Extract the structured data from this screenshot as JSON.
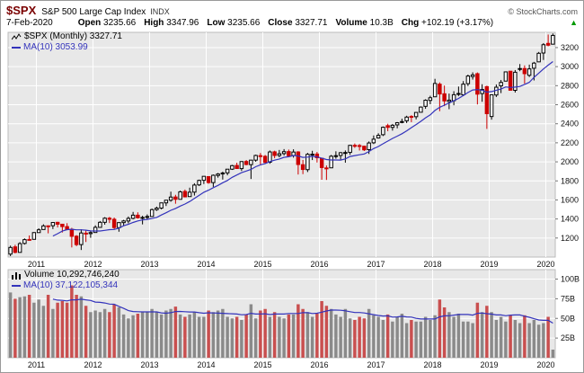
{
  "header": {
    "symbol": "$SPX",
    "name": "S&P 500 Large Cap Index",
    "exchange": "INDX",
    "copyright": "© StockCharts.com",
    "date": "7-Feb-2020",
    "quote": {
      "open_label": "Open",
      "open": "3235.66",
      "high_label": "High",
      "high": "3347.96",
      "low_label": "Low",
      "low": "3235.66",
      "close_label": "Close",
      "close": "3327.71",
      "volume_label": "Volume",
      "volume": "10.3B",
      "chg_label": "Chg",
      "chg": "+102.19 (+3.17%)",
      "direction_arrow": "▲"
    }
  },
  "chart_data": {
    "type": "candlestick",
    "period": "Monthly",
    "legend": {
      "price": "$SPX (Monthly) 3327.71",
      "price_ma": "MA(10) 3053.99",
      "volume": "Volume 10,292,746,240",
      "volume_ma": "MA(10) 37,122,105,344"
    },
    "price_ticks": [
      1200,
      1400,
      1600,
      1800,
      2000,
      2200,
      2400,
      2600,
      2800,
      3000,
      3200
    ],
    "price_range": [
      1000,
      3360
    ],
    "volume_ticks": [
      {
        "v": 25,
        "label": "25B"
      },
      {
        "v": 50,
        "label": "50B"
      },
      {
        "v": 75,
        "label": "75B"
      },
      {
        "v": 100,
        "label": "100B"
      }
    ],
    "volume_range": [
      0,
      112
    ],
    "x_labels": [
      "2011",
      "2012",
      "2013",
      "2014",
      "2015",
      "2016",
      "2017",
      "2018",
      "2019",
      "2020"
    ],
    "colors": {
      "plot_bg": "#e8e8e8",
      "grid": "#ffffff",
      "up": "#000000",
      "up_fill": "#ffffff",
      "down": "#cc0000",
      "ma": "#3333bb",
      "vol_up": "#8a8a8a",
      "vol_down": "#c94f4f",
      "axis_text": "#111111",
      "arrow_green": "#009900",
      "symbol_red": "#7a0000"
    },
    "months": [
      [
        "2010-07",
        1031,
        1120,
        1010,
        1101,
        83
      ],
      [
        "2010-08",
        1107,
        1129,
        1039,
        1049,
        75
      ],
      [
        "2010-09",
        1049,
        1157,
        1049,
        1141,
        77
      ],
      [
        "2010-10",
        1143,
        1196,
        1131,
        1183,
        78
      ],
      [
        "2010-11",
        1185,
        1227,
        1173,
        1180,
        80
      ],
      [
        "2010-12",
        1186,
        1262,
        1186,
        1257,
        70
      ],
      [
        "2011-01",
        1257,
        1302,
        1257,
        1286,
        74
      ],
      [
        "2011-02",
        1289,
        1344,
        1289,
        1327,
        66
      ],
      [
        "2011-03",
        1328,
        1332,
        1249,
        1325,
        80
      ],
      [
        "2011-04",
        1329,
        1364,
        1294,
        1363,
        62
      ],
      [
        "2011-05",
        1365,
        1370,
        1311,
        1345,
        70
      ],
      [
        "2011-06",
        1345,
        1346,
        1258,
        1320,
        72
      ],
      [
        "2011-07",
        1320,
        1356,
        1282,
        1292,
        70
      ],
      [
        "2011-08",
        1292,
        1307,
        1101,
        1218,
        92
      ],
      [
        "2011-09",
        1219,
        1230,
        1114,
        1131,
        80
      ],
      [
        "2011-10",
        1131,
        1292,
        1074,
        1253,
        78
      ],
      [
        "2011-11",
        1251,
        1277,
        1158,
        1246,
        66
      ],
      [
        "2011-12",
        1246,
        1269,
        1202,
        1257,
        58
      ],
      [
        "2012-01",
        1258,
        1333,
        1258,
        1312,
        60
      ],
      [
        "2012-02",
        1312,
        1378,
        1312,
        1365,
        58
      ],
      [
        "2012-03",
        1365,
        1419,
        1340,
        1408,
        62
      ],
      [
        "2012-04",
        1408,
        1422,
        1357,
        1397,
        58
      ],
      [
        "2012-05",
        1397,
        1415,
        1291,
        1310,
        68
      ],
      [
        "2012-06",
        1309,
        1363,
        1266,
        1362,
        64
      ],
      [
        "2012-07",
        1362,
        1391,
        1325,
        1379,
        55
      ],
      [
        "2012-08",
        1379,
        1426,
        1354,
        1406,
        50
      ],
      [
        "2012-09",
        1406,
        1474,
        1396,
        1440,
        54
      ],
      [
        "2012-10",
        1440,
        1470,
        1403,
        1412,
        56
      ],
      [
        "2012-11",
        1412,
        1434,
        1343,
        1416,
        58
      ],
      [
        "2012-12",
        1416,
        1448,
        1398,
        1426,
        58
      ],
      [
        "2013-01",
        1426,
        1509,
        1426,
        1498,
        62
      ],
      [
        "2013-02",
        1498,
        1530,
        1485,
        1514,
        58
      ],
      [
        "2013-03",
        1514,
        1570,
        1501,
        1569,
        55
      ],
      [
        "2013-04",
        1569,
        1597,
        1536,
        1597,
        60
      ],
      [
        "2013-05",
        1597,
        1687,
        1581,
        1630,
        62
      ],
      [
        "2013-06",
        1631,
        1654,
        1560,
        1606,
        65
      ],
      [
        "2013-07",
        1606,
        1698,
        1604,
        1685,
        55
      ],
      [
        "2013-08",
        1689,
        1709,
        1627,
        1632,
        52
      ],
      [
        "2013-09",
        1635,
        1729,
        1633,
        1681,
        55
      ],
      [
        "2013-10",
        1682,
        1775,
        1646,
        1756,
        58
      ],
      [
        "2013-11",
        1758,
        1813,
        1746,
        1805,
        52
      ],
      [
        "2013-12",
        1806,
        1849,
        1767,
        1848,
        52
      ],
      [
        "2014-01",
        1845,
        1850,
        1770,
        1782,
        60
      ],
      [
        "2014-02",
        1782,
        1867,
        1737,
        1859,
        58
      ],
      [
        "2014-03",
        1857,
        1883,
        1834,
        1872,
        60
      ],
      [
        "2014-04",
        1873,
        1897,
        1814,
        1883,
        62
      ],
      [
        "2014-05",
        1884,
        1924,
        1859,
        1923,
        52
      ],
      [
        "2014-06",
        1923,
        1968,
        1915,
        1960,
        50
      ],
      [
        "2014-07",
        1962,
        1991,
        1930,
        1930,
        52
      ],
      [
        "2014-08",
        1929,
        2005,
        1904,
        2003,
        48
      ],
      [
        "2014-09",
        2004,
        2019,
        1964,
        1972,
        55
      ],
      [
        "2014-10",
        1971,
        2018,
        1820,
        2018,
        68
      ],
      [
        "2014-11",
        2018,
        2075,
        2001,
        2067,
        50
      ],
      [
        "2014-12",
        2065,
        2093,
        1972,
        2058,
        60
      ],
      [
        "2015-01",
        2058,
        2072,
        1988,
        1994,
        62
      ],
      [
        "2015-02",
        1996,
        2119,
        1980,
        2104,
        52
      ],
      [
        "2015-03",
        2105,
        2117,
        2039,
        2067,
        58
      ],
      [
        "2015-04",
        2067,
        2125,
        2048,
        2085,
        52
      ],
      [
        "2015-05",
        2087,
        2134,
        2067,
        2107,
        50
      ],
      [
        "2015-06",
        2108,
        2129,
        2056,
        2063,
        55
      ],
      [
        "2015-07",
        2067,
        2132,
        2044,
        2103,
        55
      ],
      [
        "2015-08",
        2104,
        2112,
        1867,
        1972,
        68
      ],
      [
        "2015-09",
        1970,
        2020,
        1871,
        1920,
        62
      ],
      [
        "2015-10",
        1918,
        2094,
        1893,
        2079,
        58
      ],
      [
        "2015-11",
        2080,
        2116,
        2019,
        2080,
        52
      ],
      [
        "2015-12",
        2082,
        2104,
        1993,
        2043,
        56
      ],
      [
        "2016-01",
        2038,
        2038,
        1812,
        1940,
        72
      ],
      [
        "2016-02",
        1936,
        1962,
        1810,
        1932,
        66
      ],
      [
        "2016-03",
        1937,
        2072,
        1937,
        2059,
        62
      ],
      [
        "2016-04",
        2056,
        2111,
        2033,
        2065,
        55
      ],
      [
        "2016-05",
        2067,
        2103,
        2025,
        2096,
        52
      ],
      [
        "2016-06",
        2093,
        2120,
        1991,
        2098,
        62
      ],
      [
        "2016-07",
        2099,
        2177,
        2074,
        2173,
        50
      ],
      [
        "2016-08",
        2173,
        2193,
        2147,
        2170,
        48
      ],
      [
        "2016-09",
        2171,
        2187,
        2119,
        2168,
        52
      ],
      [
        "2016-10",
        2164,
        2169,
        2114,
        2126,
        50
      ],
      [
        "2016-11",
        2128,
        2214,
        2083,
        2198,
        62
      ],
      [
        "2016-12",
        2200,
        2277,
        2187,
        2238,
        54
      ],
      [
        "2017-01",
        2251,
        2300,
        2245,
        2278,
        52
      ],
      [
        "2017-02",
        2285,
        2371,
        2271,
        2363,
        48
      ],
      [
        "2017-03",
        2380,
        2400,
        2322,
        2362,
        55
      ],
      [
        "2017-04",
        2362,
        2398,
        2328,
        2384,
        46
      ],
      [
        "2017-05",
        2388,
        2418,
        2352,
        2411,
        52
      ],
      [
        "2017-06",
        2415,
        2453,
        2405,
        2423,
        56
      ],
      [
        "2017-07",
        2431,
        2484,
        2407,
        2470,
        44
      ],
      [
        "2017-08",
        2477,
        2490,
        2417,
        2471,
        48
      ],
      [
        "2017-09",
        2474,
        2519,
        2446,
        2519,
        46
      ],
      [
        "2017-10",
        2521,
        2582,
        2520,
        2575,
        46
      ],
      [
        "2017-11",
        2583,
        2657,
        2557,
        2647,
        52
      ],
      [
        "2017-12",
        2645,
        2694,
        2605,
        2673,
        48
      ],
      [
        "2018-01",
        2683,
        2872,
        2682,
        2823,
        54
      ],
      [
        "2018-02",
        2816,
        2835,
        2532,
        2713,
        74
      ],
      [
        "2018-03",
        2715,
        2801,
        2585,
        2640,
        64
      ],
      [
        "2018-04",
        2633,
        2717,
        2553,
        2648,
        58
      ],
      [
        "2018-05",
        2642,
        2742,
        2594,
        2705,
        52
      ],
      [
        "2018-06",
        2718,
        2791,
        2691,
        2718,
        56
      ],
      [
        "2018-07",
        2704,
        2848,
        2698,
        2816,
        46
      ],
      [
        "2018-08",
        2821,
        2916,
        2796,
        2901,
        46
      ],
      [
        "2018-09",
        2896,
        2940,
        2864,
        2913,
        44
      ],
      [
        "2018-10",
        2926,
        2939,
        2603,
        2711,
        70
      ],
      [
        "2018-11",
        2717,
        2815,
        2631,
        2760,
        58
      ],
      [
        "2018-12",
        2790,
        2800,
        2346,
        2506,
        66
      ],
      [
        "2019-01",
        2476,
        2708,
        2443,
        2704,
        58
      ],
      [
        "2019-02",
        2702,
        2813,
        2681,
        2784,
        48
      ],
      [
        "2019-03",
        2798,
        2860,
        2722,
        2834,
        52
      ],
      [
        "2019-04",
        2848,
        2949,
        2848,
        2945,
        46
      ],
      [
        "2019-05",
        2952,
        2954,
        2750,
        2752,
        54
      ],
      [
        "2019-06",
        2751,
        2964,
        2728,
        2941,
        48
      ],
      [
        "2019-07",
        2971,
        3027,
        2952,
        2980,
        44
      ],
      [
        "2019-08",
        2980,
        3013,
        2822,
        2926,
        54
      ],
      [
        "2019-09",
        2909,
        3021,
        2891,
        2976,
        44
      ],
      [
        "2019-10",
        2983,
        3050,
        2855,
        3037,
        48
      ],
      [
        "2019-11",
        3050,
        3154,
        3050,
        3140,
        42
      ],
      [
        "2019-12",
        3143,
        3247,
        3070,
        3230,
        44
      ],
      [
        "2020-01",
        3244,
        3337,
        3214,
        3225,
        52
      ],
      [
        "2020-02",
        3235.66,
        3347.96,
        3235.66,
        3327.71,
        10.3
      ]
    ]
  }
}
